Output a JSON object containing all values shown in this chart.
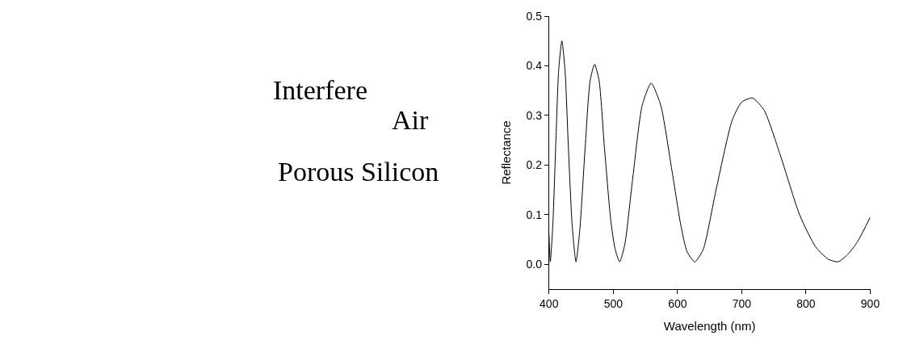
{
  "chart_data": {
    "type": "line",
    "xlabel": "Wavelength (nm)",
    "ylabel": "Reflectance",
    "x": [
      400,
      402,
      406,
      411,
      415,
      420,
      425,
      430,
      436,
      442,
      448,
      456,
      464,
      471,
      478,
      486,
      496,
      503,
      510,
      518,
      530,
      545,
      559,
      574,
      590,
      605,
      615,
      627,
      640,
      660,
      685,
      700,
      717,
      735,
      760,
      790,
      815,
      835,
      850,
      865,
      880,
      900
    ],
    "series": [
      {
        "color": "#000000",
        "values": [
          0.06,
          0.005,
          0.08,
          0.26,
          0.39,
          0.45,
          0.39,
          0.24,
          0.08,
          0.005,
          0.07,
          0.23,
          0.37,
          0.403,
          0.37,
          0.24,
          0.09,
          0.03,
          0.005,
          0.04,
          0.17,
          0.32,
          0.365,
          0.32,
          0.2,
          0.08,
          0.025,
          0.005,
          0.03,
          0.15,
          0.29,
          0.327,
          0.335,
          0.31,
          0.22,
          0.1,
          0.035,
          0.01,
          0.005,
          0.02,
          0.045,
          0.095
        ]
      }
    ],
    "xlim": [
      400,
      900
    ],
    "xticks": [
      400,
      500,
      600,
      700,
      800,
      900
    ],
    "ylim": [
      -0.05,
      0.5
    ],
    "yticks": [
      {
        "value": 0,
        "label": "0.0"
      },
      0.1,
      0.2,
      0.3,
      0.4,
      0.5
    ],
    "marker": "none",
    "line_style": "solid",
    "annotations": [
      "Interfere",
      "Air",
      "Porous Silicon"
    ]
  }
}
